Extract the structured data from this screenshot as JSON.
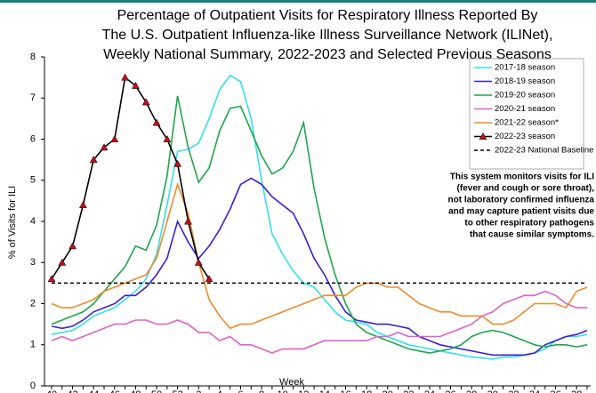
{
  "chart_data": {
    "type": "line",
    "title": [
      "Percentage of Outpatient Visits for Respiratory Illness Reported By",
      "The U.S. Outpatient Influenza-like Illness Surveillance Network (ILINet),",
      "Weekly National Summary, 2022-2023 and Selected Previous Seasons"
    ],
    "x_label": "Week",
    "y_label": "% of Visits for ILI",
    "annotation": [
      "This system monitors visits for ILI",
      "(fever and cough or sore throat),",
      "not laboratory confirmed influenza",
      "and may capture patient visits due",
      "to other respiratory pathogens",
      "that cause similar symptoms."
    ],
    "categories": [
      40,
      null,
      42,
      null,
      44,
      null,
      46,
      null,
      48,
      null,
      50,
      null,
      52,
      null,
      2,
      null,
      4,
      null,
      6,
      null,
      8,
      null,
      10,
      null,
      12,
      null,
      14,
      null,
      16,
      null,
      18,
      null,
      20,
      null,
      22,
      null,
      24,
      null,
      26,
      null,
      28,
      null,
      30,
      null,
      32,
      null,
      34,
      null,
      36,
      null,
      38,
      null
    ],
    "ylim": [
      0,
      8
    ],
    "yticks": [
      0,
      1,
      2,
      3,
      4,
      5,
      6,
      7,
      8
    ],
    "grid": false,
    "legend": "top-right",
    "series": [
      {
        "name": "2017-18 season",
        "color": "#33e0e8",
        "values": [
          1.25,
          1.3,
          1.35,
          1.5,
          1.7,
          1.8,
          1.9,
          2.1,
          2.3,
          2.6,
          3.2,
          4.4,
          5.7,
          5.75,
          5.9,
          6.5,
          7.2,
          7.55,
          7.4,
          6.5,
          5.0,
          3.7,
          3.2,
          2.8,
          2.5,
          2.4,
          2.1,
          1.8,
          1.6,
          1.55,
          1.5,
          1.3,
          1.2,
          1.1,
          1.0,
          0.95,
          0.9,
          0.85,
          0.8,
          0.75,
          0.7,
          0.68,
          0.65,
          0.7,
          0.7,
          0.75,
          0.8,
          0.9,
          1.1,
          1.2,
          1.2,
          1.25
        ]
      },
      {
        "name": "2018-19 season",
        "color": "#3a1fd6",
        "values": [
          1.45,
          1.4,
          1.45,
          1.6,
          1.8,
          1.9,
          2.0,
          2.2,
          2.2,
          2.4,
          2.7,
          3.1,
          4.0,
          3.5,
          3.1,
          3.4,
          3.8,
          4.3,
          4.9,
          5.05,
          4.9,
          4.6,
          4.4,
          4.2,
          3.7,
          3.1,
          2.7,
          2.2,
          1.8,
          1.6,
          1.55,
          1.5,
          1.5,
          1.45,
          1.4,
          1.2,
          1.1,
          1.0,
          0.95,
          0.9,
          0.85,
          0.8,
          0.75,
          0.75,
          0.75,
          0.75,
          0.8,
          1.0,
          1.1,
          1.2,
          1.25,
          1.35
        ]
      },
      {
        "name": "2019-20 season",
        "color": "#1fa64a",
        "values": [
          1.5,
          1.6,
          1.7,
          1.8,
          2.0,
          2.3,
          2.6,
          2.9,
          3.4,
          3.3,
          3.9,
          5.1,
          7.05,
          5.8,
          4.95,
          5.3,
          6.2,
          6.75,
          6.8,
          6.2,
          5.6,
          5.15,
          5.3,
          5.7,
          6.4,
          4.8,
          3.6,
          2.7,
          2.0,
          1.5,
          1.3,
          1.2,
          1.1,
          1.0,
          0.9,
          0.85,
          0.8,
          0.85,
          0.9,
          1.0,
          1.2,
          1.3,
          1.35,
          1.3,
          1.2,
          1.1,
          1.0,
          0.95,
          1.0,
          1.0,
          0.95,
          1.0
        ]
      },
      {
        "name": "2020-21 season",
        "color": "#e060c8",
        "values": [
          1.1,
          1.2,
          1.1,
          1.2,
          1.3,
          1.4,
          1.5,
          1.5,
          1.6,
          1.6,
          1.5,
          1.5,
          1.6,
          1.5,
          1.3,
          1.3,
          1.1,
          1.2,
          1.0,
          1.0,
          0.9,
          0.8,
          0.9,
          0.9,
          0.9,
          1.0,
          1.1,
          1.1,
          1.1,
          1.1,
          1.1,
          1.2,
          1.2,
          1.3,
          1.2,
          1.2,
          1.2,
          1.2,
          1.3,
          1.4,
          1.5,
          1.7,
          1.8,
          2.0,
          2.1,
          2.2,
          2.2,
          2.3,
          2.2,
          2.0,
          1.9,
          1.9
        ]
      },
      {
        "name": "2021-22 season*",
        "color": "#f08a2a",
        "values": [
          2.0,
          1.9,
          1.9,
          2.0,
          2.1,
          2.3,
          2.4,
          2.5,
          2.6,
          2.7,
          3.1,
          4.0,
          4.9,
          4.2,
          3.0,
          2.1,
          1.7,
          1.4,
          1.5,
          1.5,
          1.6,
          1.7,
          1.8,
          1.9,
          2.0,
          2.1,
          2.2,
          2.2,
          2.2,
          2.4,
          2.5,
          2.5,
          2.4,
          2.4,
          2.2,
          2.0,
          1.9,
          1.8,
          1.8,
          1.7,
          1.7,
          1.7,
          1.5,
          1.5,
          1.6,
          1.8,
          2.0,
          2.0,
          2.0,
          1.9,
          2.3,
          2.4
        ]
      },
      {
        "name": "2022-23 season",
        "color": "#000000",
        "marker": "triangle",
        "marker_color": "#c0101a",
        "values": [
          2.6,
          3.0,
          3.4,
          4.4,
          5.5,
          5.8,
          6.0,
          7.5,
          7.3,
          6.9,
          6.4,
          6.0,
          5.4,
          4.0,
          3.0,
          2.6,
          null,
          null,
          null,
          null,
          null,
          null,
          null,
          null,
          null,
          null,
          null,
          null,
          null,
          null,
          null,
          null,
          null,
          null,
          null,
          null,
          null,
          null,
          null,
          null,
          null,
          null,
          null,
          null,
          null,
          null,
          null,
          null,
          null,
          null,
          null,
          null
        ]
      },
      {
        "name": "2022-23 National Baseline",
        "color": "#000000",
        "dash": "4 3",
        "values": [
          2.5,
          2.5,
          2.5,
          2.5,
          2.5,
          2.5,
          2.5,
          2.5,
          2.5,
          2.5,
          2.5,
          2.5,
          2.5,
          2.5,
          2.5,
          2.5,
          2.5,
          2.5,
          2.5,
          2.5,
          2.5,
          2.5,
          2.5,
          2.5,
          2.5,
          2.5,
          2.5,
          2.5,
          2.5,
          2.5,
          2.5,
          2.5,
          2.5,
          2.5,
          2.5,
          2.5,
          2.5,
          2.5,
          2.5,
          2.5,
          2.5,
          2.5,
          2.5,
          2.5,
          2.5,
          2.5,
          2.5,
          2.5,
          2.5,
          2.5,
          2.5,
          2.5
        ]
      }
    ]
  }
}
